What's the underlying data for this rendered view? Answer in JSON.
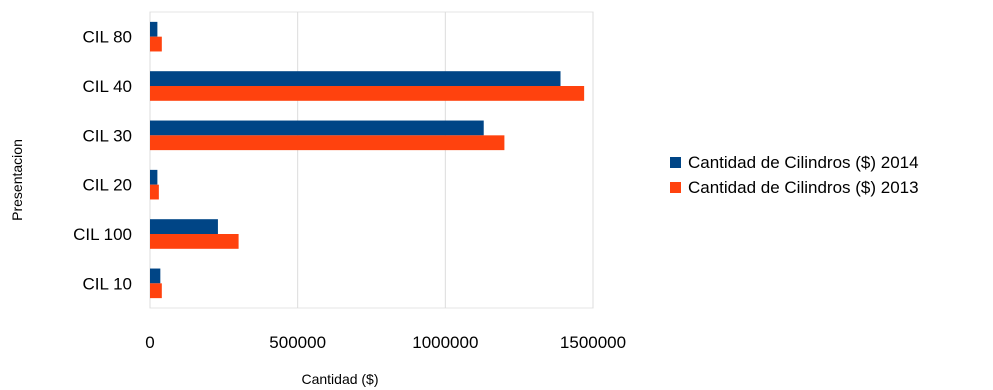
{
  "chart_data": {
    "type": "bar",
    "orientation": "horizontal",
    "title": "",
    "xlabel": "Cantidad ($)",
    "ylabel": "Presentacion",
    "categories": [
      "CIL 10",
      "CIL 100",
      "CIL 20",
      "CIL 30",
      "CIL 40",
      "CIL 80"
    ],
    "series": [
      {
        "name": "Cantidad de Cilindros ($) 2014",
        "color": "#004586",
        "values": [
          35000,
          230000,
          25000,
          1130000,
          1390000,
          25000
        ]
      },
      {
        "name": "Cantidad de Cilindros ($) 2013",
        "color": "#ff420e",
        "values": [
          40000,
          300000,
          30000,
          1200000,
          1470000,
          40000
        ]
      }
    ],
    "xlim": [
      0,
      1500000
    ],
    "xticks": [
      0,
      500000,
      1000000,
      1500000
    ],
    "grid": true,
    "legend_position": "right"
  }
}
